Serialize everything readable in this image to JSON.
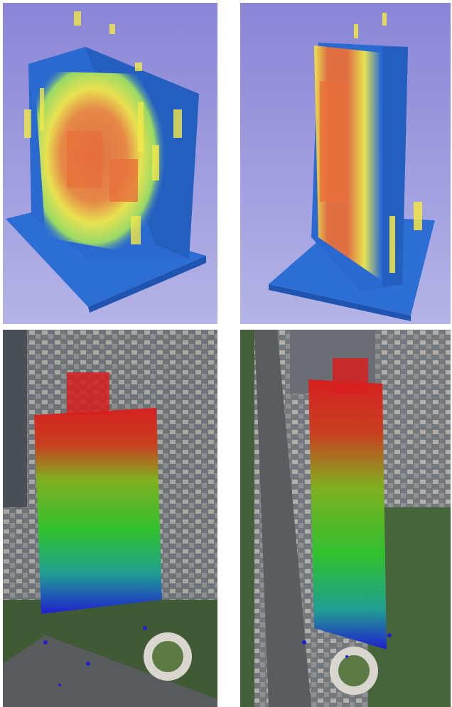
{
  "figure": {
    "panels": [
      {
        "name": "heatmap-view-left",
        "kind": "3d-heatmap-render"
      },
      {
        "name": "heatmap-view-right",
        "kind": "3d-heatmap-render"
      },
      {
        "name": "aerial-photo-left",
        "kind": "aerial-photo-with-point-overlay"
      },
      {
        "name": "aerial-photo-right",
        "kind": "aerial-photo-with-point-overlay"
      }
    ],
    "colors": {
      "background_render": "#8a87d6",
      "heat_low": "#2f6fd0",
      "heat_mid": "#f0e640",
      "heat_high": "#e8703c",
      "points_top": "#d62020",
      "points_mid": "#30c030",
      "points_bottom": "#2020d0"
    }
  }
}
